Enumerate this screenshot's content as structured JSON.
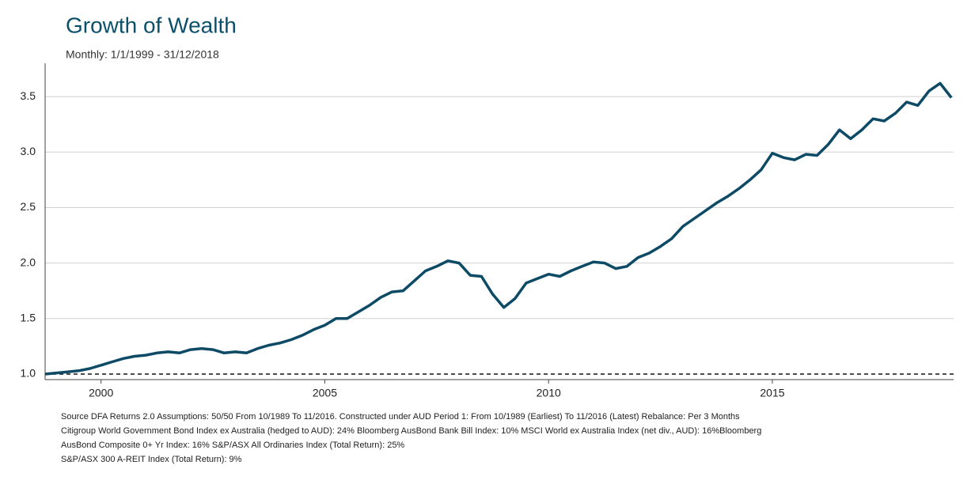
{
  "chart_data": {
    "type": "line",
    "title": "Growth of Wealth",
    "subtitle": "Monthly: 1/1/1999 - 31/12/2018",
    "footnote": [
      "Source DFA Returns 2.0 Assumptions: 50/50 From 10/1989 To 11/2016. Constructed under AUD Period 1: From 10/1989 (Earliest) To 11/2016 (Latest) Rebalance: Per 3 Months",
      "Citigroup World Government Bond Index ex Australia (hedged to AUD): 24% Bloomberg AusBond Bank Bill Index: 10% MSCI World ex Australia Index (net div., AUD): 16%Bloomberg",
      "AusBond Composite 0+ Yr Index: 16% S&P/ASX All Ordinaries Index (Total Return): 25%",
      "S&P/ASX 300 A-REIT Index (Total Return): 9%"
    ],
    "x": [
      1998.75,
      1999,
      1999.25,
      1999.5,
      1999.75,
      2000,
      2000.25,
      2000.5,
      2000.75,
      2001,
      2001.25,
      2001.5,
      2001.75,
      2002,
      2002.25,
      2002.5,
      2002.75,
      2003,
      2003.25,
      2003.5,
      2003.75,
      2004,
      2004.25,
      2004.5,
      2004.75,
      2005,
      2005.25,
      2005.5,
      2005.75,
      2006,
      2006.25,
      2006.5,
      2006.75,
      2007,
      2007.25,
      2007.5,
      2007.75,
      2008,
      2008.25,
      2008.5,
      2008.75,
      2009,
      2009.25,
      2009.5,
      2009.75,
      2010,
      2010.25,
      2010.5,
      2010.75,
      2011,
      2011.25,
      2011.5,
      2011.75,
      2012,
      2012.25,
      2012.5,
      2012.75,
      2013,
      2013.25,
      2013.5,
      2013.75,
      2014,
      2014.25,
      2014.5,
      2014.75,
      2015,
      2015.25,
      2015.5,
      2015.75,
      2016,
      2016.25,
      2016.5,
      2016.75,
      2017,
      2017.25,
      2017.5,
      2017.75,
      2018,
      2018.25,
      2018.5,
      2018.75,
      2019
    ],
    "series": [
      {
        "color": "#0d4a66",
        "values": [
          1.0,
          1.01,
          1.02,
          1.03,
          1.05,
          1.08,
          1.11,
          1.14,
          1.16,
          1.17,
          1.19,
          1.2,
          1.19,
          1.22,
          1.23,
          1.22,
          1.19,
          1.2,
          1.19,
          1.23,
          1.26,
          1.28,
          1.31,
          1.35,
          1.4,
          1.44,
          1.5,
          1.5,
          1.56,
          1.62,
          1.69,
          1.74,
          1.75,
          1.84,
          1.93,
          1.97,
          2.02,
          2.0,
          1.89,
          1.88,
          1.72,
          1.6,
          1.68,
          1.82,
          1.86,
          1.9,
          1.88,
          1.93,
          1.97,
          2.01,
          2.0,
          1.95,
          1.97,
          2.05,
          2.09,
          2.15,
          2.22,
          2.33,
          2.4,
          2.47,
          2.54,
          2.6,
          2.67,
          2.75,
          2.84,
          2.99,
          2.95,
          2.93,
          2.98,
          2.97,
          3.07,
          3.2,
          3.12,
          3.2,
          3.3,
          3.28,
          3.35,
          3.45,
          3.42,
          3.55,
          3.62,
          3.49
        ]
      }
    ],
    "xlim": [
      1998.75,
      2019.05
    ],
    "xticks": [
      2000,
      2005,
      2010,
      2015
    ],
    "ylim": [
      0.95,
      3.8
    ],
    "yticks": [
      {
        "value": 1,
        "label": "1.0"
      },
      1.5,
      {
        "value": 2,
        "label": "2.0"
      },
      2.5,
      {
        "value": 3,
        "label": "3.0"
      },
      3.5
    ],
    "grid": true,
    "reference_line": 1
  }
}
